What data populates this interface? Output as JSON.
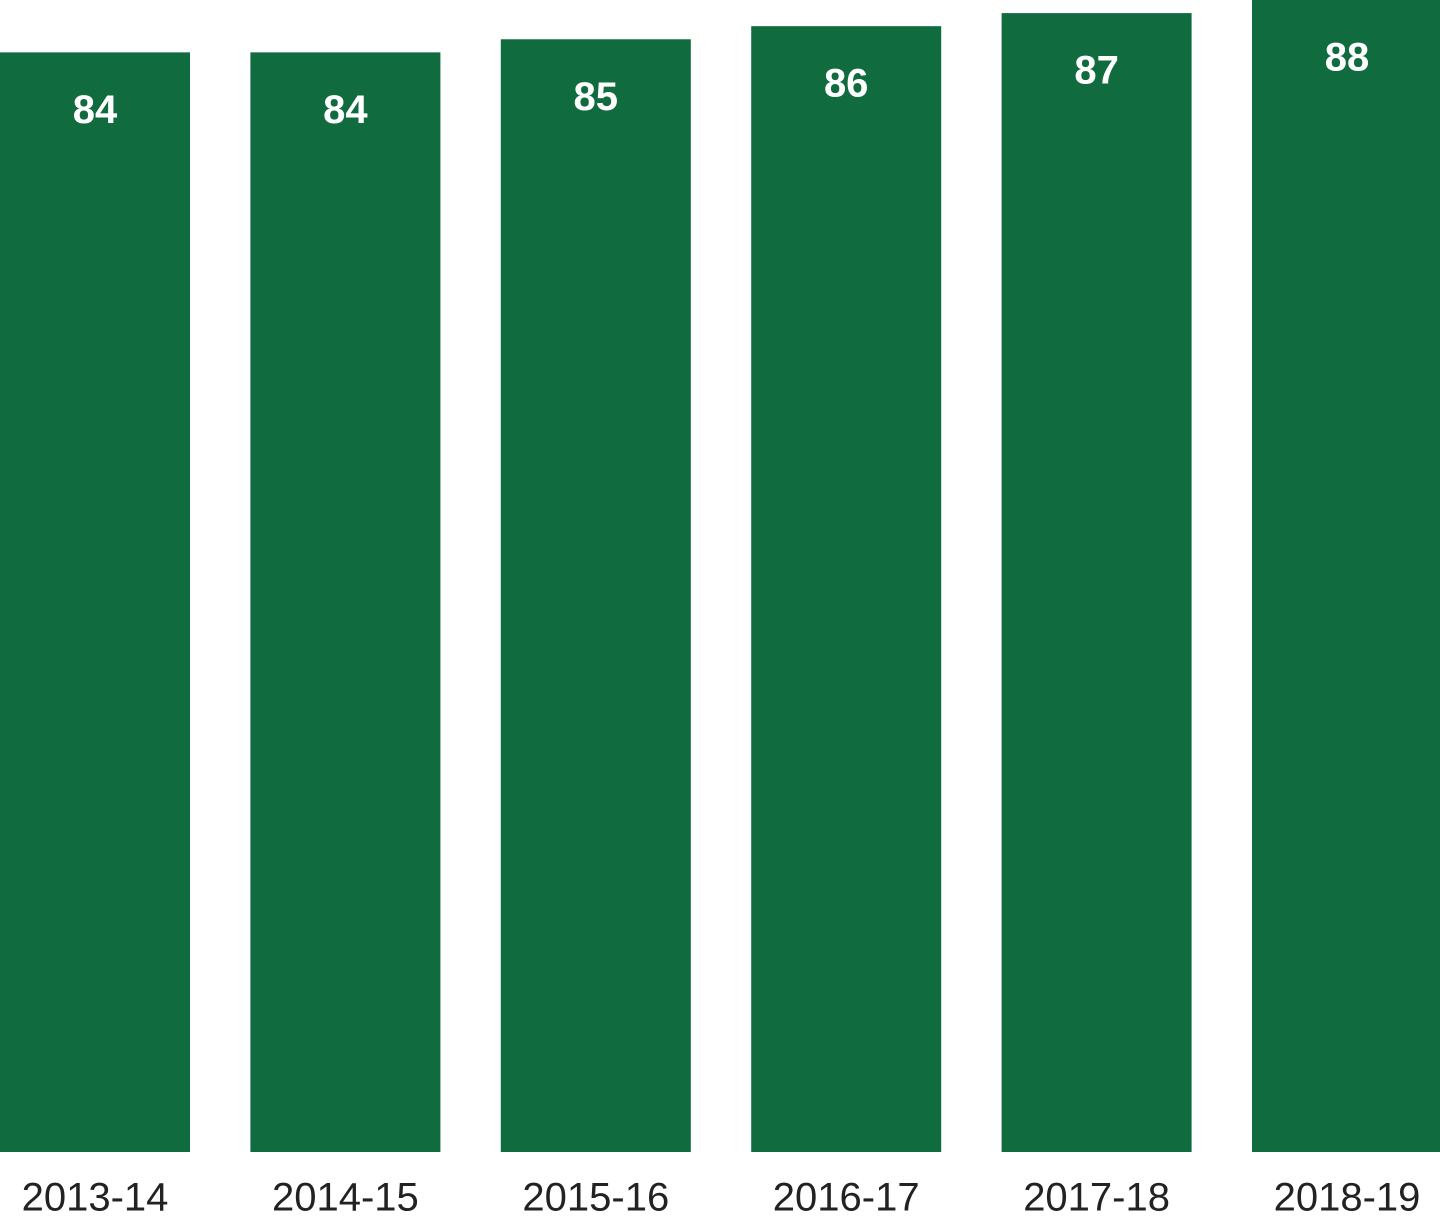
{
  "chart_data": {
    "type": "bar",
    "categories": [
      "2013-14",
      "2014-15",
      "2015-16",
      "2016-17",
      "2017-18",
      "2018-19"
    ],
    "values": [
      84,
      84,
      85,
      86,
      87,
      88
    ],
    "color": "#106b3f"
  }
}
